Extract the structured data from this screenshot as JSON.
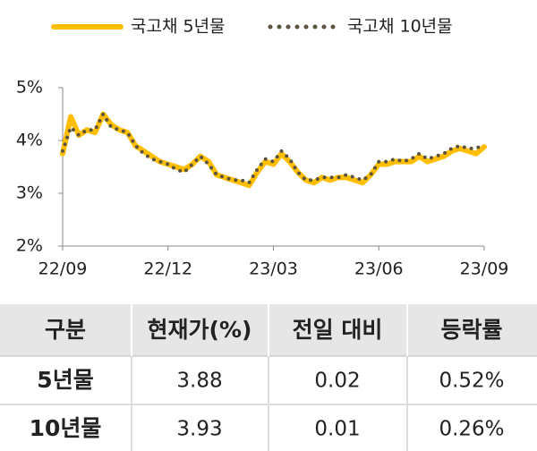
{
  "chart_data": {
    "type": "line",
    "categories": [
      "22/09",
      null,
      null,
      null,
      null,
      null,
      null,
      null,
      null,
      null,
      null,
      null,
      null,
      "22/12",
      null,
      null,
      null,
      null,
      null,
      null,
      null,
      null,
      null,
      null,
      null,
      null,
      "23/03",
      null,
      null,
      null,
      null,
      null,
      null,
      null,
      null,
      null,
      null,
      null,
      null,
      "23/06",
      null,
      null,
      null,
      null,
      null,
      null,
      null,
      null,
      null,
      null,
      null,
      null,
      "23/09"
    ],
    "series": [
      {
        "name": "국고채 5년물",
        "color": "#ffbf00",
        "style": "solid",
        "values": [
          3.75,
          4.45,
          4.1,
          4.2,
          4.15,
          4.5,
          4.3,
          4.2,
          4.15,
          3.9,
          3.8,
          3.7,
          3.6,
          3.55,
          3.5,
          3.45,
          3.55,
          3.7,
          3.6,
          3.35,
          3.3,
          3.25,
          3.2,
          3.15,
          3.4,
          3.6,
          3.55,
          3.75,
          3.6,
          3.4,
          3.25,
          3.2,
          3.3,
          3.25,
          3.3,
          3.3,
          3.25,
          3.2,
          3.35,
          3.55,
          3.55,
          3.6,
          3.6,
          3.6,
          3.7,
          3.6,
          3.65,
          3.7,
          3.8,
          3.85,
          3.8,
          3.75,
          3.88
        ]
      },
      {
        "name": "국고채 10년물",
        "color": "#5b5340",
        "style": "dotted",
        "values": [
          3.8,
          4.25,
          4.1,
          4.2,
          4.2,
          4.5,
          4.25,
          4.2,
          4.15,
          3.9,
          3.75,
          3.65,
          3.6,
          3.55,
          3.45,
          3.4,
          3.55,
          3.7,
          3.55,
          3.35,
          3.3,
          3.25,
          3.25,
          3.2,
          3.45,
          3.65,
          3.6,
          3.8,
          3.65,
          3.4,
          3.25,
          3.25,
          3.3,
          3.3,
          3.3,
          3.35,
          3.3,
          3.25,
          3.35,
          3.6,
          3.6,
          3.65,
          3.6,
          3.65,
          3.75,
          3.65,
          3.7,
          3.75,
          3.85,
          3.9,
          3.85,
          3.85,
          3.93
        ]
      }
    ],
    "ylim": [
      2,
      5
    ],
    "yticks": [
      {
        "value": 2,
        "label": "2%"
      },
      {
        "value": 3,
        "label": "3%"
      },
      {
        "value": 4,
        "label": "4%"
      },
      {
        "value": 5,
        "label": "5%"
      }
    ],
    "grid": false
  },
  "table": {
    "header": [
      "구분",
      "현재가(%)",
      "전일 대비",
      "등락률"
    ],
    "rows": [
      [
        "5년물",
        "3.88",
        "0.02",
        "0.52%"
      ],
      [
        "10년물",
        "3.93",
        "0.01",
        "0.26%"
      ]
    ]
  }
}
